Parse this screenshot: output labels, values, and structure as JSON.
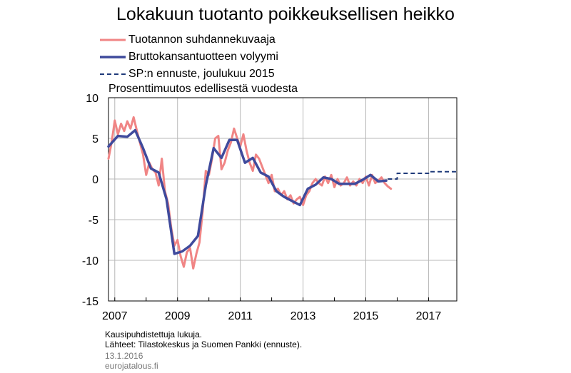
{
  "title": "Lokakuun tuotanto poikkeuksellisen heikko",
  "legend": [
    {
      "label": "Tuotannon suhdannekuvaaja",
      "color": "#f08585",
      "style": "solid"
    },
    {
      "label": "Bruttokansantuotteen volyymi",
      "color": "#3f4a9c",
      "style": "solid"
    },
    {
      "label": "SP:n ennuste, joulukuu 2015",
      "color": "#1f3a7a",
      "style": "dashed"
    }
  ],
  "subtitle": "Prosenttimuutos edellisestä vuodesta",
  "footer": {
    "note1": "Kausipuhdistettuja  lukuja.",
    "note2": "Lähteet: Tilastokeskus ja Suomen Pankki (ennuste).",
    "date": "13.1.2016",
    "site": "eurojatalous.fi"
  },
  "chart_data": {
    "type": "line",
    "xlim": [
      2006.8,
      2017.9
    ],
    "ylim": [
      -15,
      10
    ],
    "yticks": [
      10,
      5,
      0,
      -5,
      -10,
      -15
    ],
    "xticks": [
      2007,
      2009,
      2011,
      2013,
      2015,
      2017
    ],
    "xtick_labels": [
      "2007",
      "2009",
      "2011",
      "2013",
      "2015",
      "2017"
    ],
    "grid": true,
    "series": [
      {
        "name": "Tuotannon suhdannekuvaaja",
        "color": "#f08585",
        "x": [
          2006.8,
          2006.9,
          2007.0,
          2007.1,
          2007.2,
          2007.3,
          2007.4,
          2007.5,
          2007.6,
          2007.7,
          2007.8,
          2007.9,
          2008.0,
          2008.1,
          2008.2,
          2008.3,
          2008.4,
          2008.5,
          2008.6,
          2008.7,
          2008.8,
          2008.9,
          2009.0,
          2009.1,
          2009.2,
          2009.3,
          2009.4,
          2009.5,
          2009.6,
          2009.7,
          2009.8,
          2009.9,
          2010.0,
          2010.1,
          2010.2,
          2010.3,
          2010.4,
          2010.5,
          2010.6,
          2010.7,
          2010.8,
          2010.9,
          2011.0,
          2011.1,
          2011.2,
          2011.3,
          2011.4,
          2011.5,
          2011.6,
          2011.7,
          2011.8,
          2011.9,
          2012.0,
          2012.1,
          2012.2,
          2012.3,
          2012.4,
          2012.5,
          2012.6,
          2012.7,
          2012.8,
          2012.9,
          2013.0,
          2013.1,
          2013.2,
          2013.3,
          2013.4,
          2013.5,
          2013.6,
          2013.7,
          2013.8,
          2013.9,
          2014.0,
          2014.1,
          2014.2,
          2014.3,
          2014.4,
          2014.5,
          2014.6,
          2014.7,
          2014.8,
          2014.9,
          2015.0,
          2015.1,
          2015.2,
          2015.3,
          2015.4,
          2015.5,
          2015.6,
          2015.7,
          2015.8
        ],
        "values": [
          2.5,
          4.5,
          7.2,
          5.5,
          6.8,
          5.9,
          7.1,
          6.2,
          7.6,
          6.0,
          4.5,
          3.0,
          0.5,
          2.0,
          1.2,
          0.8,
          -0.8,
          2.5,
          -1.5,
          -3.0,
          -6.0,
          -8.2,
          -7.5,
          -9.5,
          -10.8,
          -9.0,
          -8.5,
          -11.0,
          -9.2,
          -7.8,
          -4.0,
          1.0,
          0.5,
          2.5,
          5.0,
          5.3,
          1.2,
          2.0,
          3.5,
          4.5,
          6.2,
          5.0,
          4.0,
          5.5,
          3.5,
          2.0,
          1.0,
          3.0,
          2.5,
          1.5,
          0.5,
          -0.5,
          0.5,
          -1.5,
          -1.2,
          -2.0,
          -1.5,
          -2.5,
          -2.0,
          -3.0,
          -2.5,
          -2.2,
          -3.2,
          -2.0,
          -1.5,
          -0.5,
          0.0,
          -0.5,
          -0.8,
          0.3,
          -0.5,
          0.5,
          -1.0,
          0.0,
          -0.8,
          -0.5,
          0.2,
          -0.8,
          -0.3,
          -0.8,
          0.0,
          -0.5,
          0.3,
          -0.8,
          0.5,
          -0.5,
          -0.2,
          0.2,
          -0.5,
          -0.9,
          -1.2
        ]
      },
      {
        "name": "Bruttokansantuotteen volyymi",
        "color": "#3f4a9c",
        "x": [
          2006.8,
          2007.1,
          2007.4,
          2007.65,
          2007.9,
          2008.15,
          2008.4,
          2008.65,
          2008.9,
          2009.15,
          2009.4,
          2009.65,
          2009.9,
          2010.15,
          2010.4,
          2010.65,
          2010.9,
          2011.15,
          2011.4,
          2011.65,
          2011.9,
          2012.15,
          2012.4,
          2012.65,
          2012.9,
          2013.15,
          2013.4,
          2013.65,
          2013.9,
          2014.15,
          2014.4,
          2014.65,
          2014.9,
          2015.15,
          2015.4,
          2015.65
        ],
        "values": [
          4.0,
          5.3,
          5.2,
          6.0,
          3.8,
          1.3,
          0.8,
          -2.5,
          -9.2,
          -8.9,
          -8.2,
          -7.0,
          -0.8,
          3.8,
          2.6,
          4.8,
          4.8,
          2.0,
          2.6,
          0.8,
          0.3,
          -1.5,
          -2.2,
          -2.7,
          -3.2,
          -1.2,
          -0.7,
          0.2,
          0.0,
          -0.6,
          -0.6,
          -0.6,
          -0.1,
          0.5,
          -0.3,
          -0.2
        ]
      },
      {
        "name": "SP:n ennuste, joulukuu 2015",
        "color": "#1f3a7a",
        "dashed": true,
        "x": [
          2015.7,
          2016.0,
          2016.0,
          2017.0,
          2017.0,
          2017.9
        ],
        "values": [
          0.0,
          0.0,
          0.7,
          0.7,
          0.9,
          0.9
        ]
      }
    ]
  }
}
